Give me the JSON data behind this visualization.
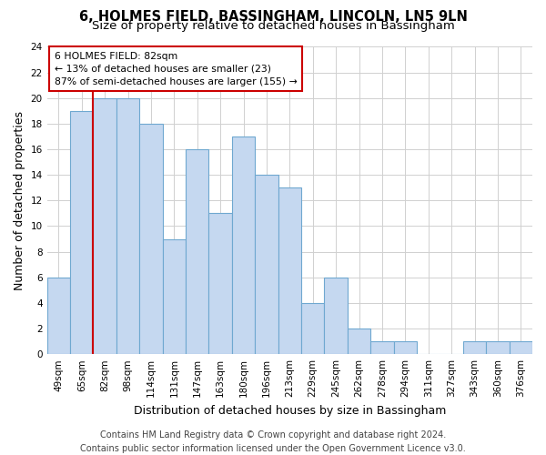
{
  "title": "6, HOLMES FIELD, BASSINGHAM, LINCOLN, LN5 9LN",
  "subtitle": "Size of property relative to detached houses in Bassingham",
  "xlabel": "Distribution of detached houses by size in Bassingham",
  "ylabel": "Number of detached properties",
  "categories": [
    "49sqm",
    "65sqm",
    "82sqm",
    "98sqm",
    "114sqm",
    "131sqm",
    "147sqm",
    "163sqm",
    "180sqm",
    "196sqm",
    "213sqm",
    "229sqm",
    "245sqm",
    "262sqm",
    "278sqm",
    "294sqm",
    "311sqm",
    "327sqm",
    "343sqm",
    "360sqm",
    "376sqm"
  ],
  "values": [
    6,
    19,
    20,
    20,
    18,
    9,
    16,
    11,
    17,
    14,
    13,
    4,
    6,
    2,
    1,
    1,
    0,
    0,
    1,
    1,
    1
  ],
  "bar_color": "#c5d8f0",
  "bar_edge_color": "#6fa8d0",
  "highlight_bar_idx": 2,
  "ylim": [
    0,
    24
  ],
  "yticks": [
    0,
    2,
    4,
    6,
    8,
    10,
    12,
    14,
    16,
    18,
    20,
    22,
    24
  ],
  "annotation_line1": "6 HOLMES FIELD: 82sqm",
  "annotation_line2": "← 13% of detached houses are smaller (23)",
  "annotation_line3": "87% of semi-detached houses are larger (155) →",
  "annotation_box_color": "#ffffff",
  "annotation_box_edge_color": "#cc0000",
  "footer_line1": "Contains HM Land Registry data © Crown copyright and database right 2024.",
  "footer_line2": "Contains public sector information licensed under the Open Government Licence v3.0.",
  "background_color": "#ffffff",
  "grid_color": "#d0d0d0",
  "title_fontsize": 10.5,
  "subtitle_fontsize": 9.5,
  "axis_label_fontsize": 9,
  "tick_fontsize": 7.5,
  "footer_fontsize": 7,
  "red_line_color": "#cc0000"
}
